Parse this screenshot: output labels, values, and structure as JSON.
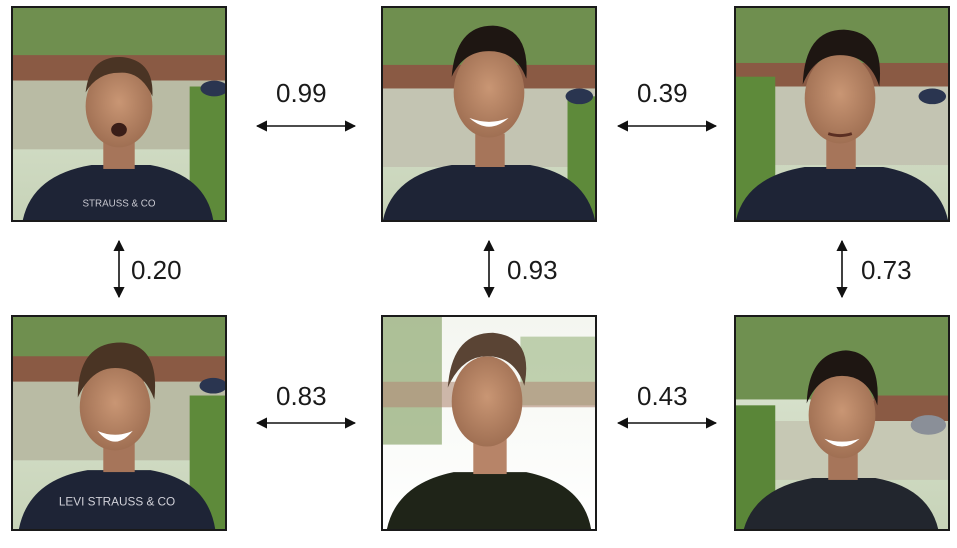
{
  "photos": [
    {
      "id": "A",
      "scene": "garden-yard",
      "expression": "surprised",
      "shirt_text": "STRAUSS & CO"
    },
    {
      "id": "B",
      "scene": "garden-yard",
      "expression": "smiling",
      "shirt_text": ""
    },
    {
      "id": "C",
      "scene": "garden-yard",
      "expression": "neutral",
      "shirt_text": ""
    },
    {
      "id": "D",
      "scene": "garden-yard",
      "expression": "laughing",
      "shirt_text": "LEVI STRAUSS & CO"
    },
    {
      "id": "E",
      "scene": "bright-garden",
      "expression": "neutral",
      "shirt_text": ""
    },
    {
      "id": "F",
      "scene": "trees-driveway",
      "expression": "smiling",
      "shirt_text": ""
    }
  ],
  "scores": {
    "a_b": "0.99",
    "b_c": "0.39",
    "a_d": "0.20",
    "b_e": "0.93",
    "c_f": "0.73",
    "d_e": "0.83",
    "e_f": "0.43"
  },
  "colors": {
    "arrow": "#111111",
    "frame": "#1a1a1a",
    "shirt": "#1e2436"
  },
  "icons": {
    "arrow_horizontal": "double-headed-arrow-horizontal-icon",
    "arrow_vertical": "double-headed-arrow-vertical-icon"
  }
}
